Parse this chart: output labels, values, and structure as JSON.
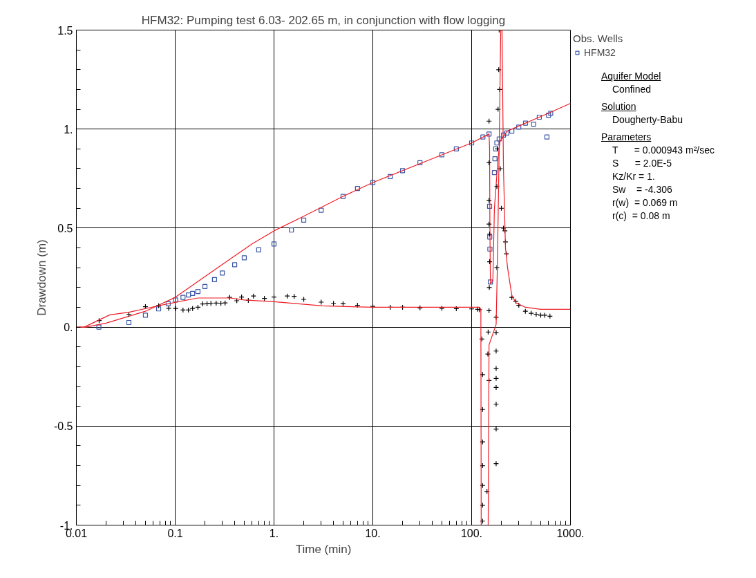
{
  "chart_data": {
    "type": "scatter",
    "title": "HFM32: Pumping test 6.03- 202.65 m, in conjunction with flow logging",
    "xlabel": "Time (min)",
    "ylabel": "Drawdown (m)",
    "legend_title": "Obs. Wells",
    "log": "x",
    "grid": true,
    "legend": "right",
    "xlim": [
      0.01,
      1000
    ],
    "ylim": [
      -1,
      1.5
    ],
    "xticks": [
      {
        "value": 0.01,
        "label": "0.01"
      },
      {
        "value": 0.1,
        "label": "0.1"
      },
      {
        "value": 1,
        "label": "1."
      },
      {
        "value": 10,
        "label": "10."
      },
      {
        "value": 100,
        "label": "100."
      },
      {
        "value": 1000,
        "label": "1000."
      }
    ],
    "yticks": [
      {
        "value": -1,
        "label": "-1."
      },
      {
        "value": -0.5,
        "label": "-0.5"
      },
      {
        "value": 0,
        "label": "0."
      },
      {
        "value": 0.5,
        "label": "0.5"
      },
      {
        "value": 1,
        "label": "1."
      },
      {
        "value": 1.5,
        "label": "1.5"
      }
    ],
    "annotations": [
      "Aquifer Model",
      "Confined",
      "Solution",
      "Dougherty-Babu",
      "Parameters",
      "T      = 0.000943 m²/sec",
      "S      = 2.0E-5",
      "Kz/Kr = 1.",
      "Sw    = -4.306",
      "r(w)  = 0.069 m",
      "r(c)  = 0.08 m"
    ],
    "series": [
      {
        "name": "HFM32",
        "type": "scatter",
        "marker": "square",
        "color": "#3a57a7",
        "x": [
          0.0169,
          0.034,
          0.05,
          0.068,
          0.085,
          0.101,
          0.12,
          0.136,
          0.15,
          0.17,
          0.2,
          0.25,
          0.3,
          0.4,
          0.5,
          0.7,
          1.0,
          1.5,
          2,
          3,
          5,
          7,
          10,
          15,
          20,
          30,
          50,
          70,
          100,
          130,
          150,
          152,
          152.5,
          153,
          155,
          170,
          172,
          175,
          180,
          190,
          210,
          227,
          255,
          300,
          351,
          424,
          484,
          578,
          600,
          631
        ],
        "values": [
          0.0,
          0.023,
          0.06,
          0.092,
          0.118,
          0.137,
          0.15,
          0.162,
          0.17,
          0.18,
          0.205,
          0.24,
          0.273,
          0.315,
          0.35,
          0.39,
          0.42,
          0.49,
          0.54,
          0.59,
          0.66,
          0.7,
          0.73,
          0.76,
          0.79,
          0.83,
          0.87,
          0.9,
          0.93,
          0.96,
          0.975,
          0.61,
          0.455,
          0.394,
          0.228,
          0.78,
          0.85,
          0.9,
          0.93,
          0.95,
          0.97,
          0.98,
          0.99,
          1.01,
          1.03,
          1.025,
          1.06,
          0.96,
          1.07,
          1.08
        ]
      },
      {
        "type": "line",
        "color": "#ee1c25",
        "x": [
          0.01,
          0.0125,
          0.02,
          0.05,
          0.1,
          0.3,
          0.6,
          1,
          2,
          5,
          10,
          50,
          100,
          150,
          152,
          153,
          155,
          164,
          170,
          185,
          194,
          230,
          350,
          600,
          1000
        ],
        "values": [
          0,
          0,
          0.02,
          0.08,
          0.15,
          0.316,
          0.42,
          0.486,
          0.56,
          0.66,
          0.73,
          0.87,
          0.93,
          0.975,
          0.9,
          0.5,
          0.22,
          0.235,
          0.6,
          0.85,
          0.94,
          0.99,
          1.03,
          1.08,
          1.13
        ]
      },
      {
        "type": "scatter",
        "marker": "cross",
        "color": "#000000",
        "x": [
          0.017,
          0.034,
          0.05,
          0.068,
          0.086,
          0.101,
          0.12,
          0.136,
          0.15,
          0.17,
          0.19,
          0.21,
          0.23,
          0.26,
          0.29,
          0.32,
          0.356,
          0.42,
          0.47,
          0.55,
          0.62,
          0.8,
          1.0,
          1.36,
          1.6,
          2,
          3,
          4,
          5,
          7,
          10,
          15,
          20,
          30,
          50,
          70,
          100,
          115,
          120,
          127,
          129,
          129,
          129,
          129,
          129,
          129,
          129,
          143,
          146,
          147,
          150,
          150,
          151,
          152,
          152,
          150,
          150,
          150,
          150,
          177,
          177,
          177,
          177,
          177,
          177,
          177,
          177,
          177,
          180,
          180,
          182,
          185,
          188,
          190,
          192,
          195,
          200,
          210,
          217,
          220,
          225,
          255,
          280,
          300,
          350,
          400,
          450,
          500,
          550,
          620
        ],
        "values": [
          0.033,
          0.065,
          0.103,
          0.108,
          0.095,
          0.094,
          0.086,
          0.086,
          0.094,
          0.1,
          0.117,
          0.118,
          0.12,
          0.121,
          0.12,
          0.122,
          0.15,
          0.133,
          0.152,
          0.135,
          0.157,
          0.145,
          0.152,
          0.157,
          0.155,
          0.14,
          0.126,
          0.12,
          0.118,
          0.11,
          0.105,
          0.1,
          0.1,
          0.097,
          0.095,
          0.093,
          0.092,
          0.09,
          0.088,
          -0.06,
          -0.24,
          -0.416,
          -0.58,
          -0.7,
          -0.8,
          -0.9,
          -0.98,
          -0.83,
          -0.136,
          -0.025,
          -0.27,
          0.083,
          0.2,
          0.33,
          0.47,
          0.52,
          0.64,
          0.83,
          1.04,
          -0.028,
          -0.121,
          -0.209,
          -0.259,
          -0.305,
          -0.389,
          -0.515,
          -0.69,
          0.05,
          0.3,
          0.71,
          0.9,
          1.1,
          1.3,
          1.5,
          1.2,
          0.8,
          0.6,
          0.5,
          0.486,
          0.43,
          0.37,
          0.15,
          0.13,
          0.11,
          0.08,
          0.07,
          0.065,
          0.06,
          0.06,
          0.055
        ]
      },
      {
        "type": "line",
        "color": "#ee1c25",
        "x": [
          0.01,
          0.012,
          0.0218,
          0.034,
          0.065,
          0.1,
          0.17,
          0.36,
          0.5,
          1.0,
          3.1,
          10,
          100,
          120,
          124,
          125,
          140,
          147,
          150,
          177,
          182,
          190,
          197,
          200,
          203,
          210,
          220,
          231,
          255,
          280,
          350,
          500,
          1000
        ],
        "values": [
          0,
          0,
          0.062,
          0.075,
          0.106,
          0.125,
          0.147,
          0.147,
          0.137,
          0.128,
          0.107,
          0.1,
          0.1,
          0.1,
          0.09,
          -1,
          null,
          -1,
          -0.09,
          0.014,
          0.3,
          0.9,
          1.5,
          null,
          1.5,
          0.8,
          0.4,
          0.3,
          0.16,
          0.123,
          0.1,
          0.09,
          0.09
        ]
      }
    ]
  }
}
